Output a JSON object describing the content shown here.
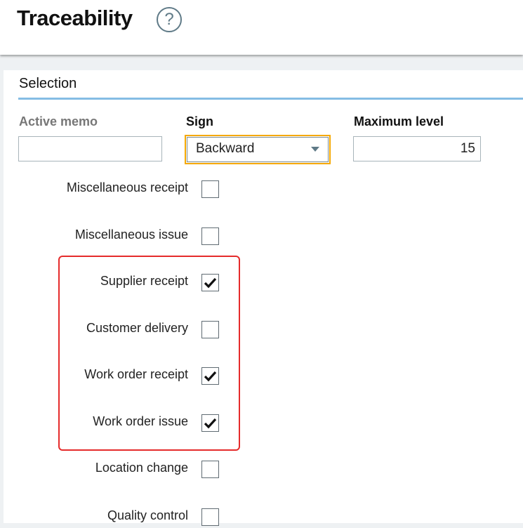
{
  "header": {
    "title": "Traceability",
    "help_icon": "question-circle-icon"
  },
  "section": {
    "title": "Selection"
  },
  "fields": {
    "active_memo": {
      "label": "Active memo",
      "value": ""
    },
    "sign": {
      "label": "Sign",
      "value": "Backward"
    },
    "maximum_level": {
      "label": "Maximum level",
      "value": "15"
    }
  },
  "checkboxes": [
    {
      "label": "Miscellaneous receipt",
      "checked": false
    },
    {
      "label": "Miscellaneous issue",
      "checked": false
    },
    {
      "label": "Supplier receipt",
      "checked": true
    },
    {
      "label": "Customer delivery",
      "checked": false
    },
    {
      "label": "Work order receipt",
      "checked": true
    },
    {
      "label": "Work order issue",
      "checked": true
    },
    {
      "label": "Location change",
      "checked": false
    },
    {
      "label": "Quality control",
      "checked": false
    }
  ],
  "colors": {
    "highlight": "#e52b2b",
    "focus": "#f5a800",
    "accent": "#85bde4"
  }
}
